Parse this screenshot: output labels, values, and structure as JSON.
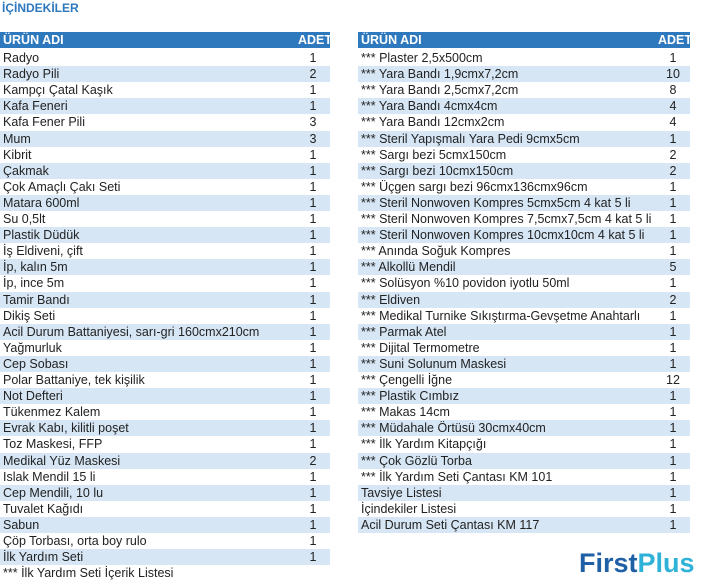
{
  "title": "İÇİNDEKİLER",
  "left_table": {
    "header": [
      "ÜRÜN ADI",
      "ADET"
    ],
    "rows": [
      [
        "Radyo",
        1
      ],
      [
        "Radyo Pili",
        2
      ],
      [
        "Kampçı Çatal Kaşık",
        1
      ],
      [
        "Kafa Feneri",
        1
      ],
      [
        "Kafa Fener Pili",
        3
      ],
      [
        "Mum",
        3
      ],
      [
        "Kibrit",
        1
      ],
      [
        "Çakmak",
        1
      ],
      [
        "Çok Amaçlı Çakı Seti",
        1
      ],
      [
        "Matara 600ml",
        1
      ],
      [
        "Su 0,5lt",
        1
      ],
      [
        "Plastik Düdük",
        1
      ],
      [
        "İş Eldiveni, çift",
        1
      ],
      [
        "İp, kalın 5m",
        1
      ],
      [
        "İp, ince 5m",
        1
      ],
      [
        "Tamir Bandı",
        1
      ],
      [
        "Dikiş Seti",
        1
      ],
      [
        "Acil Durum Battaniyesi, sarı-gri 160cmx210cm",
        1
      ],
      [
        "Yağmurluk",
        1
      ],
      [
        "Cep Sobası",
        1
      ],
      [
        "Polar Battaniye, tek kişilik",
        1
      ],
      [
        "Not Defteri",
        1
      ],
      [
        "Tükenmez Kalem",
        1
      ],
      [
        "Evrak Kabı, kilitli poşet",
        1
      ],
      [
        "Toz Maskesi, FFP",
        1
      ],
      [
        "Medikal Yüz Maskesi",
        2
      ],
      [
        "Islak Mendil 15 li",
        1
      ],
      [
        "Cep Mendili, 10 lu",
        1
      ],
      [
        "Tuvalet Kağıdı",
        1
      ],
      [
        "Sabun",
        1
      ],
      [
        "Çöp Torbası, orta boy rulo",
        1
      ],
      [
        "İlk Yardım Seti",
        1
      ]
    ],
    "footer": "*** İlk Yardım Seti İçerik Listesi"
  },
  "right_table": {
    "header": [
      "ÜRÜN ADI",
      "ADET"
    ],
    "rows": [
      [
        "*** Plaster 2,5x500cm",
        1
      ],
      [
        "*** Yara Bandı 1,9cmx7,2cm",
        10
      ],
      [
        "*** Yara Bandı 2,5cmx7,2cm",
        8
      ],
      [
        "*** Yara Bandı 4cmx4cm",
        4
      ],
      [
        "*** Yara Bandı 12cmx2cm",
        4
      ],
      [
        "*** Steril Yapışmalı Yara Pedi 9cmx5cm",
        1
      ],
      [
        "*** Sargı bezi 5cmx150cm",
        2
      ],
      [
        "*** Sargı bezi 10cmx150cm",
        2
      ],
      [
        "*** Üçgen sargı bezi 96cmx136cmx96cm",
        1
      ],
      [
        "*** Steril Nonwoven Kompres 5cmx5cm 4 kat 5 li",
        1
      ],
      [
        "*** Steril Nonwoven Kompres 7,5cmx7,5cm 4 kat 5 li",
        1
      ],
      [
        "*** Steril Nonwoven Kompres 10cmx10cm 4 kat 5 li",
        1
      ],
      [
        "*** Anında Soğuk Kompres",
        1
      ],
      [
        "*** Alkollü Mendil",
        5
      ],
      [
        "*** Solüsyon %10 povidon iyotlu 50ml",
        1
      ],
      [
        "*** Eldiven",
        2
      ],
      [
        "*** Medikal Turnike Sıkıştırma-Gevşetme Anahtarlı",
        1
      ],
      [
        "*** Parmak Atel",
        1
      ],
      [
        "*** Dijital Termometre",
        1
      ],
      [
        "*** Suni Solunum Maskesi",
        1
      ],
      [
        "*** Çengelli İğne",
        12
      ],
      [
        "*** Plastik Cımbız",
        1
      ],
      [
        "*** Makas 14cm",
        1
      ],
      [
        "*** Müdahale Örtüsü 30cmx40cm",
        1
      ],
      [
        "*** İlk Yardım Kitapçığı",
        1
      ],
      [
        "*** Çok Gözlü Torba",
        1
      ],
      [
        "*** İlk Yardım Seti Çantası KM 101",
        1
      ],
      [
        "Tavsiye Listesi",
        1
      ],
      [
        "İçindekiler Listesi",
        1
      ],
      [
        "Acil Durum Seti Çantası KM 117",
        1
      ]
    ]
  },
  "brand": {
    "first": "First",
    "plus": "Plus"
  }
}
